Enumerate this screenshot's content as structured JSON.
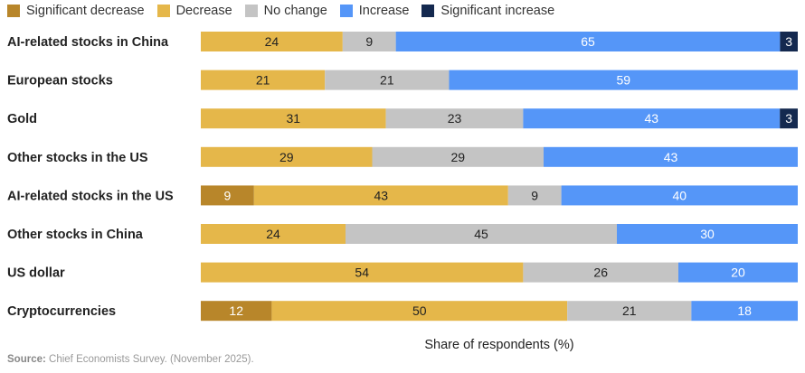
{
  "chart_data": {
    "type": "bar",
    "orientation": "horizontal",
    "stacked": true,
    "xlabel": "Share of respondents (%)",
    "legend_position": "top-left",
    "legend": [
      "Significant decrease",
      "Decrease",
      "No change",
      "Increase",
      "Significant increase"
    ],
    "colors": [
      "#b8862a",
      "#e5b74a",
      "#c4c4c4",
      "#5596f8",
      "#14294f"
    ],
    "categories": [
      "AI-related stocks in China",
      "European stocks",
      "Gold",
      "Other stocks in the US",
      "AI-related stocks in the US",
      "Other stocks in China",
      "US dollar",
      "Cryptocurrencies"
    ],
    "series": [
      {
        "name": "Significant decrease",
        "values": [
          0,
          0,
          0,
          0,
          9,
          0,
          0,
          12
        ]
      },
      {
        "name": "Decrease",
        "values": [
          24,
          21,
          31,
          29,
          43,
          24,
          54,
          50
        ]
      },
      {
        "name": "No change",
        "values": [
          9,
          21,
          23,
          29,
          9,
          45,
          26,
          21
        ]
      },
      {
        "name": "Increase",
        "values": [
          65,
          59,
          43,
          43,
          40,
          30,
          20,
          18
        ]
      },
      {
        "name": "Significant increase",
        "values": [
          3,
          0,
          3,
          0,
          0,
          0,
          0,
          0
        ]
      }
    ]
  },
  "source": {
    "label": "Source:",
    "text": " Chief Economists Survey. (November 2025)."
  }
}
